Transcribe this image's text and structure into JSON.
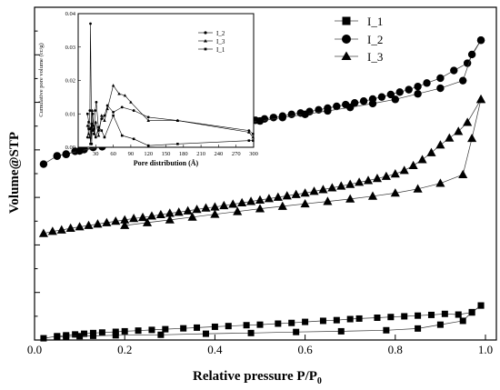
{
  "chart_data": [
    {
      "type": "scatter",
      "xlabel": "Relative pressure P/P",
      "xlabel_sub": "0",
      "ylabel": "Volume@STP",
      "xlim": [
        0,
        1.0
      ],
      "xticks": [
        "0.0",
        "0.2",
        "0.4",
        "0.6",
        "0.8",
        "1.0"
      ],
      "yticks_labeled": false,
      "legend_position": "top-right",
      "series": [
        {
          "name": "I_1",
          "marker": "square",
          "adsorption": [
            [
              0.02,
              0.05
            ],
            [
              0.05,
              0.11
            ],
            [
              0.07,
              0.135
            ],
            [
              0.09,
              0.16
            ],
            [
              0.11,
              0.18
            ],
            [
              0.13,
              0.2
            ],
            [
              0.15,
              0.215
            ],
            [
              0.18,
              0.235
            ],
            [
              0.2,
              0.25
            ],
            [
              0.23,
              0.27
            ],
            [
              0.26,
              0.29
            ],
            [
              0.29,
              0.31
            ],
            [
              0.33,
              0.335
            ],
            [
              0.36,
              0.355
            ],
            [
              0.4,
              0.38
            ],
            [
              0.43,
              0.4
            ],
            [
              0.47,
              0.425
            ],
            [
              0.5,
              0.44
            ],
            [
              0.54,
              0.47
            ],
            [
              0.57,
              0.49
            ],
            [
              0.6,
              0.52
            ],
            [
              0.64,
              0.55
            ],
            [
              0.67,
              0.57
            ],
            [
              0.7,
              0.6
            ],
            [
              0.72,
              0.615
            ],
            [
              0.76,
              0.64
            ],
            [
              0.79,
              0.66
            ],
            [
              0.82,
              0.68
            ],
            [
              0.85,
              0.7
            ],
            [
              0.88,
              0.72
            ],
            [
              0.91,
              0.75
            ],
            [
              0.94,
              0.73
            ],
            [
              0.97,
              0.79
            ],
            [
              0.99,
              0.99
            ]
          ],
          "desorption": [
            [
              0.99,
              0.99
            ],
            [
              0.97,
              0.8
            ],
            [
              0.95,
              0.55
            ],
            [
              0.9,
              0.44
            ],
            [
              0.85,
              0.33
            ],
            [
              0.78,
              0.28
            ],
            [
              0.68,
              0.25
            ],
            [
              0.58,
              0.23
            ],
            [
              0.48,
              0.2
            ],
            [
              0.38,
              0.18
            ],
            [
              0.28,
              0.15
            ],
            [
              0.18,
              0.135
            ],
            [
              0.13,
              0.12
            ],
            [
              0.1,
              0.11
            ],
            [
              0.07,
              0.1
            ],
            [
              0.05,
              0.09
            ]
          ]
        },
        {
          "name": "I_2",
          "marker": "circle",
          "adsorption": [
            [
              0.02,
              5.05
            ],
            [
              0.05,
              5.29
            ],
            [
              0.07,
              5.33
            ],
            [
              0.09,
              5.42
            ],
            [
              0.11,
              5.47
            ],
            [
              0.13,
              5.53
            ],
            [
              0.15,
              5.58
            ],
            [
              0.17,
              5.63
            ],
            [
              0.19,
              5.68
            ],
            [
              0.21,
              5.73
            ],
            [
              0.23,
              5.77
            ],
            [
              0.25,
              5.82
            ],
            [
              0.27,
              5.86
            ],
            [
              0.29,
              5.9
            ],
            [
              0.31,
              5.94
            ],
            [
              0.33,
              5.98
            ],
            [
              0.35,
              6.03
            ],
            [
              0.37,
              6.07
            ],
            [
              0.39,
              6.11
            ],
            [
              0.41,
              6.15
            ],
            [
              0.43,
              6.19
            ],
            [
              0.45,
              6.23
            ],
            [
              0.47,
              6.27
            ],
            [
              0.49,
              6.31
            ],
            [
              0.51,
              6.35
            ],
            [
              0.53,
              6.39
            ],
            [
              0.55,
              6.43
            ],
            [
              0.57,
              6.48
            ],
            [
              0.59,
              6.52
            ],
            [
              0.61,
              6.56
            ],
            [
              0.63,
              6.61
            ],
            [
              0.65,
              6.66
            ],
            [
              0.67,
              6.71
            ],
            [
              0.69,
              6.76
            ],
            [
              0.71,
              6.81
            ],
            [
              0.73,
              6.86
            ],
            [
              0.75,
              6.92
            ],
            [
              0.77,
              6.98
            ],
            [
              0.79,
              7.05
            ],
            [
              0.81,
              7.12
            ],
            [
              0.83,
              7.19
            ],
            [
              0.85,
              7.28
            ],
            [
              0.87,
              7.38
            ],
            [
              0.9,
              7.52
            ],
            [
              0.93,
              7.74
            ],
            [
              0.96,
              7.95
            ],
            [
              0.99,
              8.61
            ]
          ],
          "desorption": [
            [
              0.99,
              8.61
            ],
            [
              0.97,
              8.2
            ],
            [
              0.95,
              7.45
            ],
            [
              0.9,
              7.23
            ],
            [
              0.85,
              7.07
            ],
            [
              0.8,
              6.91
            ],
            [
              0.75,
              6.79
            ],
            [
              0.7,
              6.68
            ],
            [
              0.65,
              6.58
            ],
            [
              0.6,
              6.48
            ],
            [
              0.55,
              6.39
            ],
            [
              0.5,
              6.29
            ],
            [
              0.45,
              6.2
            ],
            [
              0.4,
              6.11
            ],
            [
              0.35,
              6.02
            ],
            [
              0.3,
              5.92
            ],
            [
              0.25,
              5.81
            ],
            [
              0.2,
              5.68
            ],
            [
              0.15,
              5.55
            ],
            [
              0.1,
              5.43
            ],
            [
              0.07,
              5.34
            ],
            [
              0.05,
              5.28
            ]
          ]
        },
        {
          "name": "I_3",
          "marker": "triangle",
          "adsorption": [
            [
              0.02,
              3.06
            ],
            [
              0.04,
              3.12
            ],
            [
              0.06,
              3.16
            ],
            [
              0.08,
              3.21
            ],
            [
              0.1,
              3.25
            ],
            [
              0.12,
              3.29
            ],
            [
              0.14,
              3.33
            ],
            [
              0.16,
              3.37
            ],
            [
              0.18,
              3.41
            ],
            [
              0.2,
              3.45
            ],
            [
              0.22,
              3.49
            ],
            [
              0.24,
              3.52
            ],
            [
              0.26,
              3.56
            ],
            [
              0.28,
              3.6
            ],
            [
              0.3,
              3.64
            ],
            [
              0.32,
              3.67
            ],
            [
              0.34,
              3.71
            ],
            [
              0.36,
              3.75
            ],
            [
              0.38,
              3.79
            ],
            [
              0.4,
              3.82
            ],
            [
              0.42,
              3.86
            ],
            [
              0.44,
              3.9
            ],
            [
              0.46,
              3.94
            ],
            [
              0.48,
              3.98
            ],
            [
              0.5,
              4.02
            ],
            [
              0.52,
              4.06
            ],
            [
              0.54,
              4.1
            ],
            [
              0.56,
              4.14
            ],
            [
              0.58,
              4.18
            ],
            [
              0.6,
              4.22
            ],
            [
              0.62,
              4.27
            ],
            [
              0.64,
              4.32
            ],
            [
              0.66,
              4.37
            ],
            [
              0.68,
              4.42
            ],
            [
              0.7,
              4.47
            ],
            [
              0.72,
              4.53
            ],
            [
              0.74,
              4.58
            ],
            [
              0.76,
              4.64
            ],
            [
              0.78,
              4.7
            ],
            [
              0.8,
              4.77
            ],
            [
              0.82,
              4.87
            ],
            [
              0.84,
              5.01
            ],
            [
              0.86,
              5.18
            ],
            [
              0.88,
              5.38
            ],
            [
              0.9,
              5.6
            ],
            [
              0.92,
              5.8
            ],
            [
              0.94,
              5.99
            ],
            [
              0.96,
              6.25
            ],
            [
              0.99,
              6.91
            ]
          ],
          "desorption": [
            [
              0.99,
              6.91
            ],
            [
              0.97,
              5.79
            ],
            [
              0.95,
              4.75
            ],
            [
              0.9,
              4.5
            ],
            [
              0.85,
              4.34
            ],
            [
              0.8,
              4.22
            ],
            [
              0.75,
              4.13
            ],
            [
              0.7,
              4.05
            ],
            [
              0.65,
              3.98
            ],
            [
              0.6,
              3.91
            ],
            [
              0.55,
              3.84
            ],
            [
              0.5,
              3.77
            ],
            [
              0.45,
              3.69
            ],
            [
              0.4,
              3.61
            ],
            [
              0.35,
              3.53
            ],
            [
              0.3,
              3.45
            ],
            [
              0.25,
              3.37
            ],
            [
              0.2,
              3.29
            ]
          ]
        }
      ]
    },
    {
      "type": "line",
      "role": "inset",
      "xlabel": "Pore distribution (Å)",
      "ylabel": "Cumulative pore volume (cc/g)",
      "xlim": [
        0,
        300
      ],
      "ylim": [
        0,
        0.04
      ],
      "xticks": [
        30,
        60,
        90,
        120,
        150,
        180,
        210,
        240,
        270,
        300
      ],
      "yticks": [
        "0.00",
        "0.01",
        "0.02",
        "0.03",
        "0.04"
      ],
      "legend_position": "top-right",
      "series": [
        {
          "name": "I_2",
          "marker": "circle",
          "points": [
            [
              16,
              0.003
            ],
            [
              18,
              0.0055
            ],
            [
              20,
              0.011
            ],
            [
              21,
              0.037
            ],
            [
              23,
              0.001
            ],
            [
              25,
              0.01
            ],
            [
              27,
              0.004
            ],
            [
              29,
              0.011
            ],
            [
              31,
              0.0135
            ],
            [
              35,
              0.005
            ],
            [
              40,
              0.0085
            ],
            [
              45,
              0.0095
            ],
            [
              50,
              0.0125
            ],
            [
              60,
              0.0105
            ],
            [
              75,
              0.012
            ],
            [
              95,
              0.011
            ],
            [
              120,
              0.009
            ],
            [
              170,
              0.008
            ],
            [
              292,
              0.005
            ],
            [
              299,
              0.004
            ]
          ]
        },
        {
          "name": "I_3",
          "marker": "triangle",
          "points": [
            [
              16,
              0.0065
            ],
            [
              18,
              0.004
            ],
            [
              20,
              0.003
            ],
            [
              22,
              0.006
            ],
            [
              24,
              0.011
            ],
            [
              26,
              0.0065
            ],
            [
              28,
              0.004
            ],
            [
              30,
              0.0075
            ],
            [
              35,
              0.0035
            ],
            [
              40,
              0.0095
            ],
            [
              45,
              0.008
            ],
            [
              50,
              0.0115
            ],
            [
              60,
              0.0185
            ],
            [
              70,
              0.016
            ],
            [
              80,
              0.0155
            ],
            [
              90,
              0.0135
            ],
            [
              120,
              0.008
            ],
            [
              170,
              0.008
            ],
            [
              292,
              0.0045
            ],
            [
              299,
              0.003
            ]
          ]
        },
        {
          "name": "I_1",
          "marker": "square",
          "points": [
            [
              16,
              0.01
            ],
            [
              18,
              0.0075
            ],
            [
              20,
              0.0055
            ],
            [
              21,
              0.001
            ],
            [
              23,
              0.007
            ],
            [
              25,
              0.005
            ],
            [
              27,
              0.0055
            ],
            [
              30,
              0.003
            ],
            [
              35,
              0.006
            ],
            [
              40,
              0.005
            ],
            [
              45,
              0.003
            ],
            [
              60,
              0.0095
            ],
            [
              75,
              0.0035
            ],
            [
              95,
              0.0025
            ],
            [
              120,
              0.0005
            ],
            [
              170,
              0.001
            ],
            [
              292,
              0.002
            ],
            [
              299,
              0.002
            ]
          ]
        }
      ]
    }
  ]
}
